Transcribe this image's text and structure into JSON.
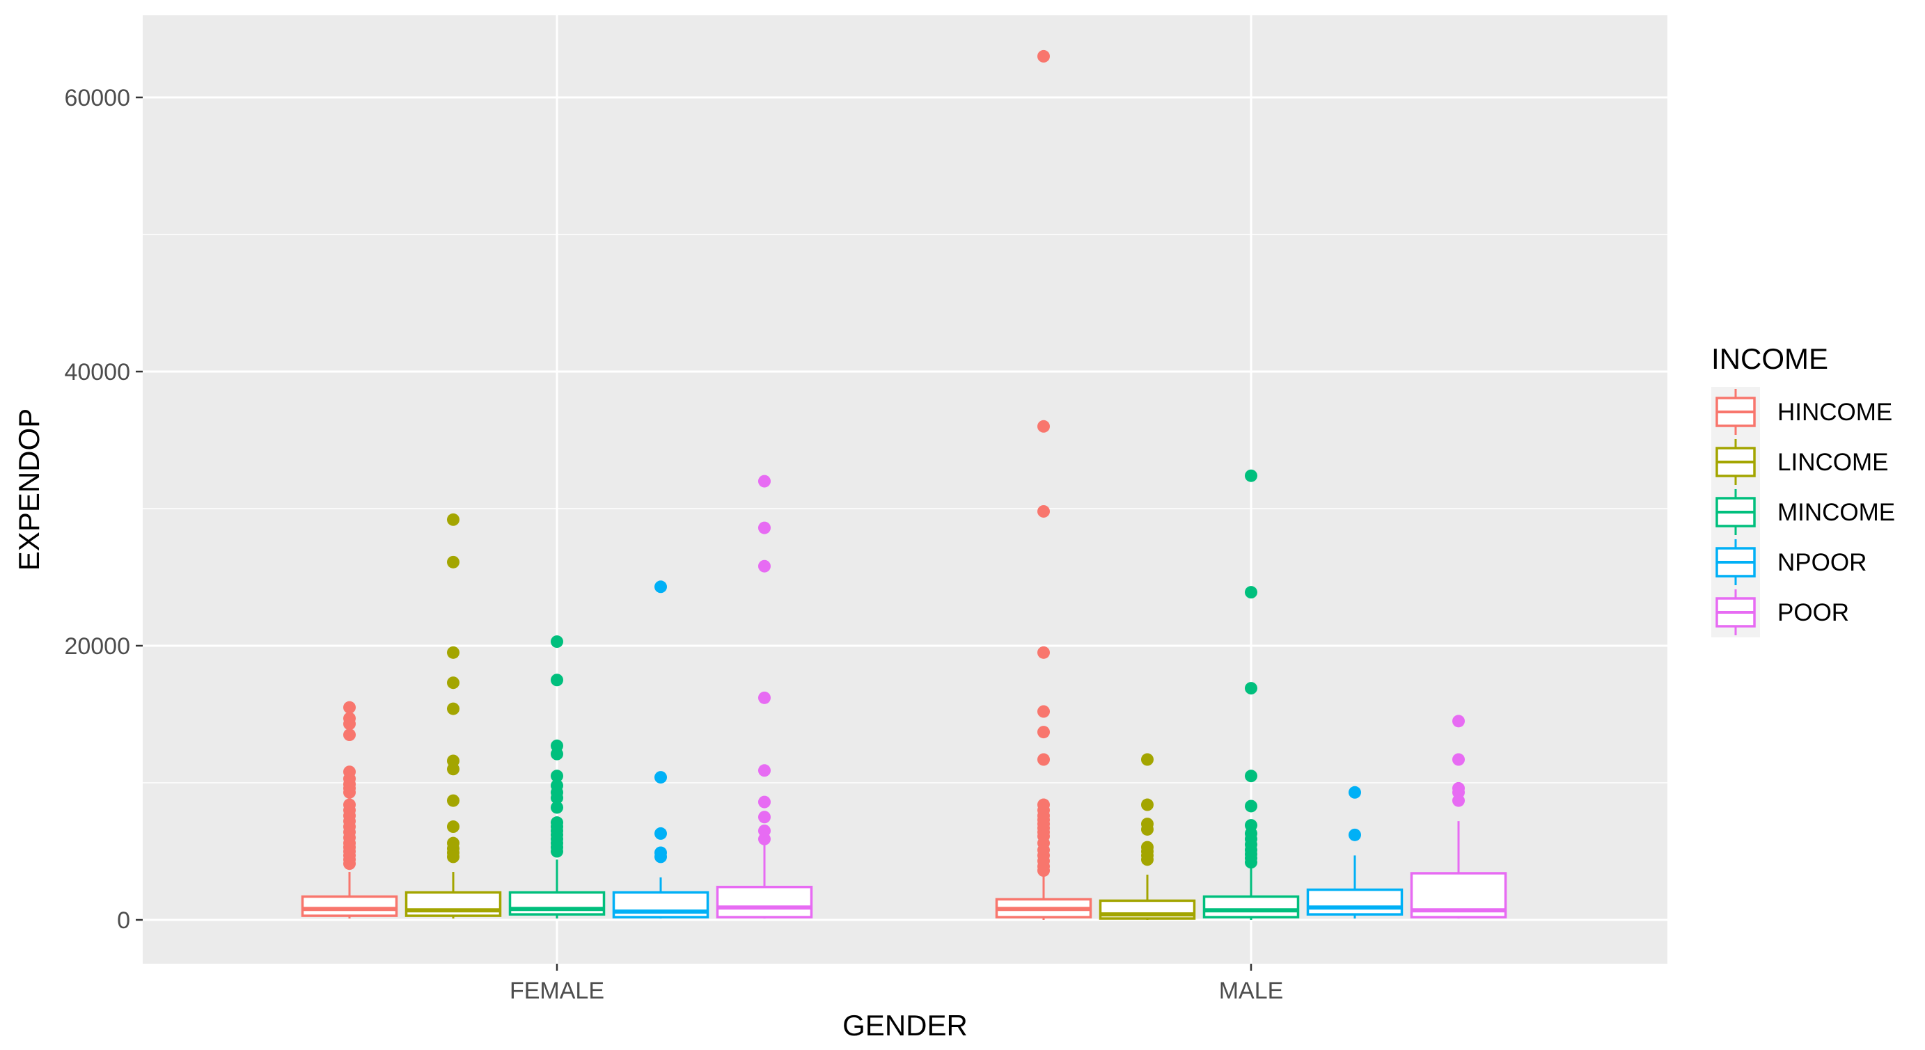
{
  "chart_data": {
    "type": "boxplot",
    "xlabel": "GENDER",
    "ylabel": "EXPENDOP",
    "categories": [
      "FEMALE",
      "MALE"
    ],
    "y_ticks": [
      0,
      20000,
      40000,
      60000
    ],
    "ylim": [
      -3000,
      66000
    ],
    "grid": true,
    "legend": {
      "title": "INCOME",
      "position": "right"
    },
    "series": [
      {
        "name": "HINCOME",
        "color": "#F8766D",
        "boxes": [
          {
            "category": "FEMALE",
            "lower": 100,
            "q1": 300,
            "median": 800,
            "q3": 1700,
            "upper": 3500,
            "outliers": [
              15500,
              14700,
              14300,
              13500,
              10800,
              10300,
              9900,
              9600,
              9300,
              8400,
              8000,
              7600,
              7200,
              6800,
              6400,
              6000,
              5600,
              5300,
              5000,
              4700,
              4400,
              4100
            ]
          },
          {
            "category": "MALE",
            "lower": 0,
            "q1": 200,
            "median": 800,
            "q3": 1500,
            "upper": 3300,
            "outliers": [
              63000,
              36000,
              29800,
              19500,
              15200,
              13700,
              11700,
              8400,
              8000,
              7600,
              7300,
              7000,
              6700,
              6400,
              6100,
              5600,
              5100,
              4700,
              4300,
              3900,
              3600
            ]
          }
        ]
      },
      {
        "name": "LINCOME",
        "color": "#A3A500",
        "boxes": [
          {
            "category": "FEMALE",
            "lower": 100,
            "q1": 300,
            "median": 700,
            "q3": 2000,
            "upper": 3500,
            "outliers": [
              29200,
              26100,
              19500,
              17300,
              15400,
              11600,
              11000,
              8700,
              6800,
              5600,
              5200,
              4900,
              4600
            ]
          },
          {
            "category": "MALE",
            "lower": 0,
            "q1": 100,
            "median": 400,
            "q3": 1400,
            "upper": 3300,
            "outliers": [
              11700,
              8400,
              7000,
              6600,
              5300,
              5000,
              4700,
              4400
            ]
          }
        ]
      },
      {
        "name": "MINCOME",
        "color": "#00BF7D",
        "boxes": [
          {
            "category": "FEMALE",
            "lower": 100,
            "q1": 400,
            "median": 800,
            "q3": 2000,
            "upper": 4400,
            "outliers": [
              20300,
              17500,
              12700,
              12100,
              10500,
              9800,
              9300,
              8900,
              8200,
              7100,
              6800,
              6500,
              6200,
              5900,
              5600,
              5300,
              5000
            ]
          },
          {
            "category": "MALE",
            "lower": 0,
            "q1": 200,
            "median": 700,
            "q3": 1700,
            "upper": 3900,
            "outliers": [
              32400,
              23900,
              16900,
              10500,
              8300,
              6900,
              6300,
              5900,
              5500,
              5100,
              4800,
              4500,
              4200
            ]
          }
        ]
      },
      {
        "name": "NPOOR",
        "color": "#00B0F6",
        "boxes": [
          {
            "category": "FEMALE",
            "lower": 100,
            "q1": 200,
            "median": 600,
            "q3": 2000,
            "upper": 3100,
            "outliers": [
              24300,
              10400,
              6300,
              4900,
              4600
            ]
          },
          {
            "category": "MALE",
            "lower": 100,
            "q1": 400,
            "median": 900,
            "q3": 2200,
            "upper": 4700,
            "outliers": [
              9300,
              6200
            ]
          }
        ]
      },
      {
        "name": "POOR",
        "color": "#E76BF3",
        "boxes": [
          {
            "category": "FEMALE",
            "lower": 100,
            "q1": 200,
            "median": 900,
            "q3": 2400,
            "upper": 5700,
            "outliers": [
              32000,
              28600,
              25800,
              16200,
              10900,
              8600,
              7500,
              6500,
              5900
            ]
          },
          {
            "category": "MALE",
            "lower": 100,
            "q1": 200,
            "median": 700,
            "q3": 3400,
            "upper": 7200,
            "outliers": [
              14500,
              11700,
              9600,
              9300,
              8700
            ]
          }
        ]
      }
    ]
  }
}
